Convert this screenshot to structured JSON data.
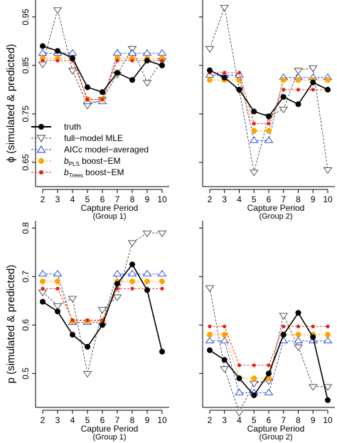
{
  "figure": {
    "ylabel_top": "ϕ (simulated & predicted)",
    "ylabel_bottom": "p (simulated & predicted)"
  },
  "legend": {
    "truth": "truth",
    "mle": "full−model MLE",
    "aicc": "AICc model−averaged",
    "pls_prefix": "b",
    "pls_sub": "PLS",
    "pls_suffix": " boost−EM",
    "trees_prefix": "b",
    "trees_sub": "Trees",
    "trees_suffix": " boost−EM"
  },
  "colors": {
    "truth": "#000000",
    "mle": "#444444",
    "aicc": "#1f3fd6",
    "pls": "#ffa500",
    "trees": "#e8201a"
  },
  "chart_data": [
    {
      "type": "line",
      "panel": "top-left",
      "xlabel": "Capture Period",
      "sublabel": "(Group 1)",
      "x": [
        2,
        3,
        4,
        5,
        6,
        7,
        8,
        9,
        10
      ],
      "xticks": [
        "2",
        "3",
        "4",
        "5",
        "6",
        "7",
        "8",
        "9",
        "10"
      ],
      "ylim": [
        0.6,
        0.985
      ],
      "yticks": [
        0.65,
        0.75,
        0.85,
        0.95
      ],
      "ytick_labels": [
        "0.65",
        "0.75",
        "0.85",
        "0.95"
      ],
      "series": [
        {
          "key": "truth",
          "name": "truth",
          "values": [
            0.89,
            0.88,
            0.865,
            0.805,
            0.795,
            0.835,
            0.82,
            0.86,
            0.85
          ]
        },
        {
          "key": "mle",
          "name": "full−model MLE",
          "values": [
            0.853,
            0.965,
            0.84,
            0.768,
            0.78,
            0.832,
            0.885,
            0.815,
            0.86
          ]
        },
        {
          "key": "aicc",
          "name": "AICc model−averaged",
          "values": [
            0.875,
            0.875,
            0.875,
            0.775,
            0.775,
            0.875,
            0.875,
            0.875,
            0.875
          ]
        },
        {
          "key": "pls",
          "name": "bPLS boost−EM",
          "values": [
            0.865,
            0.865,
            0.865,
            0.78,
            0.78,
            0.865,
            0.865,
            0.865,
            0.865
          ]
        },
        {
          "key": "trees",
          "name": "bTrees boost−EM",
          "values": [
            0.86,
            0.86,
            0.86,
            0.78,
            0.78,
            0.86,
            0.86,
            0.86,
            0.86
          ]
        }
      ]
    },
    {
      "type": "line",
      "panel": "top-right",
      "xlabel": "Capture Period",
      "sublabel": "(Group 2)",
      "x": [
        2,
        3,
        4,
        5,
        6,
        7,
        8,
        9,
        10
      ],
      "xticks": [
        "2",
        "3",
        "4",
        "5",
        "6",
        "7",
        "8",
        "9",
        "10"
      ],
      "ylim": [
        0.6,
        0.985
      ],
      "yticks": [
        0.65,
        0.75,
        0.85,
        0.95
      ],
      "ytick_labels": [],
      "series": [
        {
          "key": "truth",
          "name": "truth",
          "values": [
            0.84,
            0.825,
            0.8,
            0.755,
            0.745,
            0.785,
            0.77,
            0.815,
            0.8
          ]
        },
        {
          "key": "mle",
          "name": "full−model MLE",
          "values": [
            0.885,
            0.97,
            0.8,
            0.63,
            0.745,
            0.76,
            0.84,
            0.845,
            0.635
          ]
        },
        {
          "key": "aicc",
          "name": "AICc model−averaged",
          "values": [
            0.83,
            0.83,
            0.83,
            0.695,
            0.695,
            0.825,
            0.825,
            0.825,
            0.825
          ]
        },
        {
          "key": "pls",
          "name": "bPLS boost−EM",
          "values": [
            0.82,
            0.82,
            0.82,
            0.715,
            0.715,
            0.82,
            0.82,
            0.82,
            0.82
          ]
        },
        {
          "key": "trees",
          "name": "bTrees boost−EM",
          "values": [
            0.835,
            0.835,
            0.835,
            0.73,
            0.73,
            0.8,
            0.8,
            0.8,
            0.8
          ]
        }
      ]
    },
    {
      "type": "line",
      "panel": "bottom-left",
      "xlabel": "Capture Period",
      "sublabel": "(Group 1)",
      "x": [
        2,
        3,
        4,
        5,
        6,
        7,
        8,
        9,
        10
      ],
      "xticks": [
        "2",
        "3",
        "4",
        "5",
        "6",
        "7",
        "8",
        "9",
        "10"
      ],
      "ylim": [
        0.43,
        0.815
      ],
      "yticks": [
        0.5,
        0.6,
        0.7,
        0.8
      ],
      "ytick_labels": [
        "0.5",
        "0.6",
        "0.7",
        "0.8"
      ],
      "series": [
        {
          "key": "truth",
          "name": "truth",
          "values": [
            0.648,
            0.628,
            0.58,
            0.555,
            0.6,
            0.685,
            0.725,
            0.672,
            0.545
          ]
        },
        {
          "key": "mle",
          "name": "full−model MLE",
          "values": [
            0.668,
            0.64,
            0.655,
            0.5,
            0.632,
            0.658,
            0.77,
            0.79,
            0.79
          ]
        },
        {
          "key": "aicc",
          "name": "AICc model−averaged",
          "values": [
            0.705,
            0.705,
            0.605,
            0.605,
            0.605,
            0.705,
            0.705,
            0.705,
            0.705
          ]
        },
        {
          "key": "pls",
          "name": "bPLS boost−EM",
          "values": [
            0.69,
            0.69,
            0.608,
            0.608,
            0.608,
            0.69,
            0.69,
            0.69,
            0.69
          ]
        },
        {
          "key": "trees",
          "name": "bTrees boost−EM",
          "values": [
            0.675,
            0.675,
            0.61,
            0.61,
            0.61,
            0.675,
            0.675,
            0.675,
            0.675
          ]
        }
      ]
    },
    {
      "type": "line",
      "panel": "bottom-right",
      "xlabel": "Capture Period",
      "sublabel": "(Group 2)",
      "x": [
        2,
        3,
        4,
        5,
        6,
        7,
        8,
        9,
        10
      ],
      "xticks": [
        "2",
        "3",
        "4",
        "5",
        "6",
        "7",
        "8",
        "9",
        "10"
      ],
      "ylim": [
        0.43,
        0.815
      ],
      "yticks": [
        0.5,
        0.6,
        0.7,
        0.8
      ],
      "ytick_labels": [],
      "series": [
        {
          "key": "truth",
          "name": "truth",
          "values": [
            0.548,
            0.528,
            0.49,
            0.455,
            0.5,
            0.58,
            0.625,
            0.575,
            0.445
          ]
        },
        {
          "key": "mle",
          "name": "full−model MLE",
          "values": [
            0.677,
            0.51,
            0.42,
            0.48,
            0.485,
            0.62,
            0.555,
            0.473,
            0.473
          ]
        },
        {
          "key": "aicc",
          "name": "AICc model−averaged",
          "values": [
            0.567,
            0.567,
            0.46,
            0.46,
            0.46,
            0.567,
            0.567,
            0.567,
            0.567
          ]
        },
        {
          "key": "pls",
          "name": "bPLS boost−EM",
          "values": [
            0.58,
            0.58,
            0.49,
            0.49,
            0.49,
            0.58,
            0.58,
            0.58,
            0.58
          ]
        },
        {
          "key": "trees",
          "name": "bTrees boost−EM",
          "values": [
            0.597,
            0.597,
            0.517,
            0.517,
            0.517,
            0.597,
            0.597,
            0.597,
            0.597
          ]
        }
      ]
    }
  ]
}
